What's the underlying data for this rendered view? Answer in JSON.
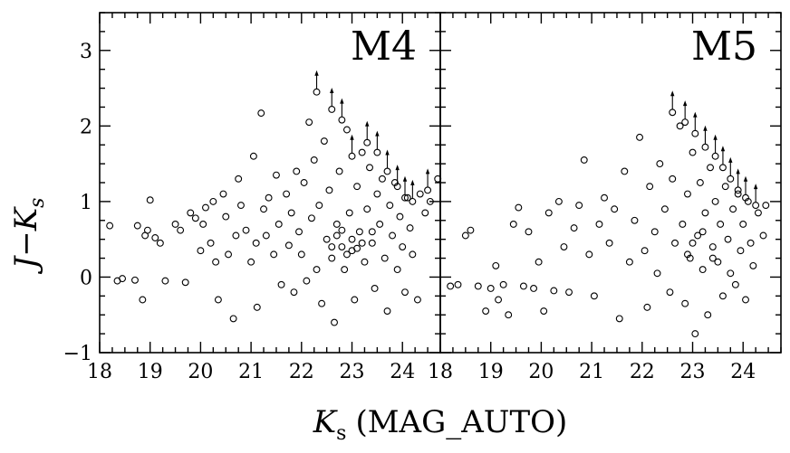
{
  "chart_data": [
    {
      "type": "scatter",
      "panel_label": "M4",
      "xlim": [
        18,
        24.75
      ],
      "ylim": [
        -1,
        3.5
      ],
      "x_ticks": [
        18,
        19,
        20,
        21,
        22,
        23,
        24
      ],
      "y_ticks": [
        -1,
        0,
        1,
        2,
        3
      ],
      "points": [
        [
          18.2,
          0.68
        ],
        [
          18.35,
          -0.05
        ],
        [
          18.45,
          -0.02
        ],
        [
          18.7,
          -0.04
        ],
        [
          18.75,
          0.68
        ],
        [
          18.85,
          -0.3
        ],
        [
          18.9,
          0.55
        ],
        [
          18.95,
          0.62
        ],
        [
          19.0,
          1.02
        ],
        [
          19.1,
          0.52
        ],
        [
          19.2,
          0.45
        ],
        [
          19.3,
          -0.05
        ],
        [
          19.5,
          0.7
        ],
        [
          19.6,
          0.62
        ],
        [
          19.7,
          -0.07
        ],
        [
          19.8,
          0.85
        ],
        [
          19.9,
          0.78
        ],
        [
          20.0,
          0.35
        ],
        [
          20.05,
          0.7
        ],
        [
          20.1,
          0.92
        ],
        [
          20.2,
          0.45
        ],
        [
          20.25,
          1.0
        ],
        [
          20.3,
          0.2
        ],
        [
          20.35,
          -0.3
        ],
        [
          20.45,
          1.1
        ],
        [
          20.5,
          0.8
        ],
        [
          20.55,
          0.3
        ],
        [
          20.65,
          -0.55
        ],
        [
          20.7,
          0.55
        ],
        [
          20.75,
          1.3
        ],
        [
          20.8,
          0.95
        ],
        [
          20.9,
          0.62
        ],
        [
          21.0,
          0.2
        ],
        [
          21.05,
          1.6
        ],
        [
          21.1,
          0.45
        ],
        [
          21.12,
          -0.4
        ],
        [
          21.2,
          2.17
        ],
        [
          21.25,
          0.9
        ],
        [
          21.3,
          0.55
        ],
        [
          21.35,
          1.05
        ],
        [
          21.45,
          0.3
        ],
        [
          21.5,
          1.35
        ],
        [
          21.55,
          0.7
        ],
        [
          21.6,
          -0.1
        ],
        [
          21.7,
          1.1
        ],
        [
          21.75,
          0.42
        ],
        [
          21.8,
          0.85
        ],
        [
          21.85,
          -0.2
        ],
        [
          21.9,
          1.4
        ],
        [
          21.95,
          0.6
        ],
        [
          22.0,
          0.3
        ],
        [
          22.05,
          1.25
        ],
        [
          22.1,
          -0.05
        ],
        [
          22.15,
          2.05
        ],
        [
          22.2,
          0.78
        ],
        [
          22.25,
          1.55
        ],
        [
          22.3,
          0.1
        ],
        [
          22.35,
          0.95
        ],
        [
          22.4,
          -0.35
        ],
        [
          22.45,
          1.8
        ],
        [
          22.5,
          0.5
        ],
        [
          22.55,
          1.15
        ],
        [
          22.6,
          0.25
        ],
        [
          22.65,
          -0.6
        ],
        [
          22.7,
          0.7
        ],
        [
          22.75,
          1.4
        ],
        [
          22.8,
          0.4
        ],
        [
          22.85,
          0.1
        ],
        [
          22.9,
          1.95
        ],
        [
          22.95,
          0.85
        ],
        [
          23.0,
          0.35
        ],
        [
          23.05,
          -0.3
        ],
        [
          23.1,
          1.2
        ],
        [
          23.15,
          0.6
        ],
        [
          23.2,
          1.65
        ],
        [
          23.25,
          0.2
        ],
        [
          23.3,
          0.9
        ],
        [
          23.35,
          1.45
        ],
        [
          23.4,
          0.45
        ],
        [
          23.45,
          -0.15
        ],
        [
          23.5,
          1.1
        ],
        [
          23.55,
          0.7
        ],
        [
          23.6,
          1.3
        ],
        [
          23.65,
          0.25
        ],
        [
          23.7,
          -0.45
        ],
        [
          23.75,
          0.95
        ],
        [
          23.8,
          0.55
        ],
        [
          23.85,
          1.25
        ],
        [
          23.9,
          0.1
        ],
        [
          23.95,
          0.8
        ],
        [
          24.0,
          0.4
        ],
        [
          24.05,
          -0.2
        ],
        [
          24.1,
          1.05
        ],
        [
          24.15,
          0.65
        ],
        [
          24.2,
          0.3
        ],
        [
          24.3,
          -0.3
        ],
        [
          24.35,
          1.1
        ],
        [
          24.45,
          0.85
        ],
        [
          24.55,
          1.0
        ],
        [
          24.7,
          1.3
        ],
        [
          22.6,
          0.4
        ],
        [
          22.7,
          0.55
        ],
        [
          22.9,
          0.3
        ],
        [
          23.0,
          0.5
        ],
        [
          23.1,
          0.38
        ],
        [
          23.2,
          0.45
        ],
        [
          22.8,
          0.62
        ],
        [
          23.4,
          0.6
        ]
      ],
      "upper_limits": [
        [
          22.3,
          2.45
        ],
        [
          22.6,
          2.22
        ],
        [
          22.8,
          2.08
        ],
        [
          23.0,
          1.6
        ],
        [
          23.3,
          1.78
        ],
        [
          23.5,
          1.65
        ],
        [
          23.7,
          1.4
        ],
        [
          23.9,
          1.2
        ],
        [
          24.05,
          1.05
        ],
        [
          24.2,
          1.0
        ],
        [
          24.5,
          1.15
        ]
      ]
    },
    {
      "type": "scatter",
      "panel_label": "M5",
      "xlim": [
        18,
        24.75
      ],
      "ylim": [
        -1,
        3.5
      ],
      "x_ticks": [
        18,
        19,
        20,
        21,
        22,
        23,
        24
      ],
      "y_ticks": [
        -1,
        0,
        1,
        2,
        3
      ],
      "points": [
        [
          18.2,
          -0.12
        ],
        [
          18.35,
          -0.1
        ],
        [
          18.5,
          0.55
        ],
        [
          18.6,
          0.62
        ],
        [
          18.75,
          -0.12
        ],
        [
          18.9,
          -0.45
        ],
        [
          19.0,
          -0.15
        ],
        [
          19.1,
          0.15
        ],
        [
          19.15,
          -0.3
        ],
        [
          19.25,
          -0.1
        ],
        [
          19.35,
          -0.5
        ],
        [
          19.45,
          0.7
        ],
        [
          19.55,
          0.92
        ],
        [
          19.65,
          -0.12
        ],
        [
          19.75,
          0.6
        ],
        [
          19.85,
          -0.15
        ],
        [
          19.95,
          0.2
        ],
        [
          20.05,
          -0.45
        ],
        [
          20.15,
          0.85
        ],
        [
          20.25,
          -0.18
        ],
        [
          20.35,
          1.0
        ],
        [
          20.45,
          0.4
        ],
        [
          20.55,
          -0.2
        ],
        [
          20.65,
          0.65
        ],
        [
          20.75,
          0.95
        ],
        [
          20.85,
          1.55
        ],
        [
          20.95,
          0.3
        ],
        [
          21.05,
          -0.25
        ],
        [
          21.15,
          0.7
        ],
        [
          21.25,
          1.05
        ],
        [
          21.35,
          0.45
        ],
        [
          21.45,
          0.9
        ],
        [
          21.55,
          -0.55
        ],
        [
          21.65,
          1.4
        ],
        [
          21.75,
          0.2
        ],
        [
          21.85,
          0.75
        ],
        [
          21.95,
          1.85
        ],
        [
          22.05,
          0.35
        ],
        [
          22.1,
          -0.4
        ],
        [
          22.15,
          1.2
        ],
        [
          22.25,
          0.6
        ],
        [
          22.3,
          0.05
        ],
        [
          22.35,
          1.5
        ],
        [
          22.45,
          0.9
        ],
        [
          22.55,
          -0.2
        ],
        [
          22.6,
          1.3
        ],
        [
          22.65,
          0.45
        ],
        [
          22.75,
          2.0
        ],
        [
          22.8,
          0.7
        ],
        [
          22.85,
          -0.35
        ],
        [
          22.9,
          1.1
        ],
        [
          22.95,
          0.25
        ],
        [
          23.0,
          1.65
        ],
        [
          23.05,
          -0.75
        ],
        [
          23.1,
          0.55
        ],
        [
          23.15,
          1.25
        ],
        [
          23.2,
          0.1
        ],
        [
          23.25,
          0.85
        ],
        [
          23.3,
          -0.5
        ],
        [
          23.35,
          1.45
        ],
        [
          23.4,
          0.4
        ],
        [
          23.45,
          1.0
        ],
        [
          23.5,
          0.2
        ],
        [
          23.55,
          0.7
        ],
        [
          23.6,
          -0.25
        ],
        [
          23.65,
          1.2
        ],
        [
          23.7,
          0.5
        ],
        [
          23.75,
          0.05
        ],
        [
          23.8,
          0.9
        ],
        [
          23.85,
          -0.1
        ],
        [
          23.9,
          1.1
        ],
        [
          23.95,
          0.35
        ],
        [
          24.0,
          0.7
        ],
        [
          24.05,
          -0.3
        ],
        [
          24.1,
          1.0
        ],
        [
          24.15,
          0.45
        ],
        [
          24.2,
          0.15
        ],
        [
          24.3,
          0.85
        ],
        [
          24.4,
          0.55
        ],
        [
          24.45,
          0.95
        ],
        [
          22.9,
          0.3
        ],
        [
          23.0,
          0.45
        ],
        [
          23.2,
          0.6
        ],
        [
          23.4,
          0.25
        ]
      ],
      "upper_limits": [
        [
          22.6,
          2.18
        ],
        [
          22.85,
          2.05
        ],
        [
          23.05,
          1.9
        ],
        [
          23.25,
          1.72
        ],
        [
          23.45,
          1.6
        ],
        [
          23.6,
          1.45
        ],
        [
          23.75,
          1.3
        ],
        [
          23.9,
          1.15
        ],
        [
          24.05,
          1.05
        ],
        [
          24.25,
          0.95
        ]
      ]
    }
  ],
  "axes": {
    "ylabel_main": "J−K",
    "ylabel_sub": "s",
    "xlabel_main": "K",
    "xlabel_sub": "s",
    "xlabel_rest": "(MAG_AUTO)"
  }
}
